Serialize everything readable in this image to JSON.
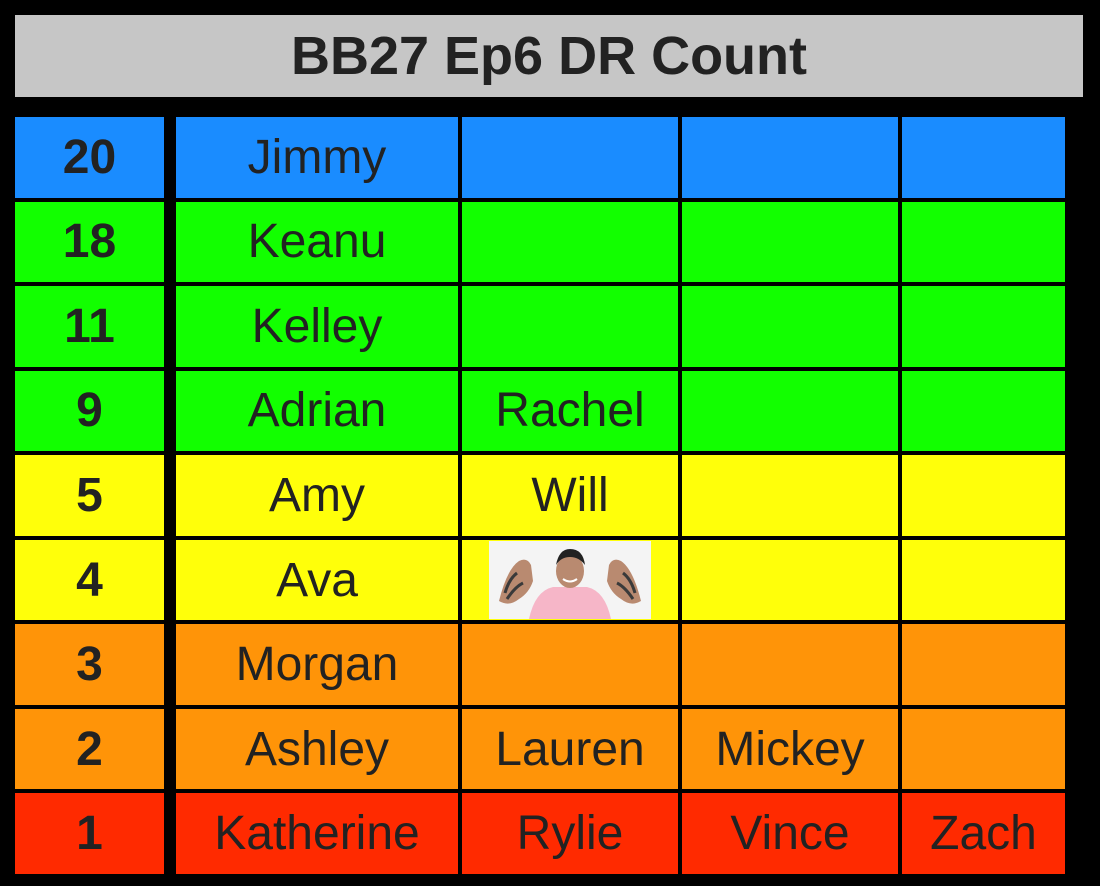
{
  "title": "BB27 Ep6 DR Count",
  "colors": {
    "blue": "#1a8cff",
    "green": "#12ff00",
    "yellow": "#ffff0a",
    "orange": "#ff9408",
    "red": "#ff2a00"
  },
  "rows": [
    {
      "count": "20",
      "color": "blue",
      "names": [
        "Jimmy",
        "",
        "",
        ""
      ]
    },
    {
      "count": "18",
      "color": "green",
      "names": [
        "Keanu",
        "",
        "",
        ""
      ]
    },
    {
      "count": "11",
      "color": "green",
      "names": [
        "Kelley",
        "",
        "",
        ""
      ]
    },
    {
      "count": "9",
      "color": "green",
      "names": [
        "Adrian",
        "Rachel",
        "",
        ""
      ]
    },
    {
      "count": "5",
      "color": "yellow",
      "names": [
        "Amy",
        "Will",
        "",
        ""
      ]
    },
    {
      "count": "4",
      "color": "yellow",
      "names": [
        "Ava",
        "",
        "",
        ""
      ],
      "photo_in_column": 2
    },
    {
      "count": "3",
      "color": "orange",
      "names": [
        "Morgan",
        "",
        "",
        ""
      ]
    },
    {
      "count": "2",
      "color": "orange",
      "names": [
        "Ashley",
        "Lauren",
        "Mickey",
        ""
      ]
    },
    {
      "count": "1",
      "color": "red",
      "names": [
        "Katherine",
        "Rylie",
        "Vince",
        "Zach"
      ]
    }
  ]
}
